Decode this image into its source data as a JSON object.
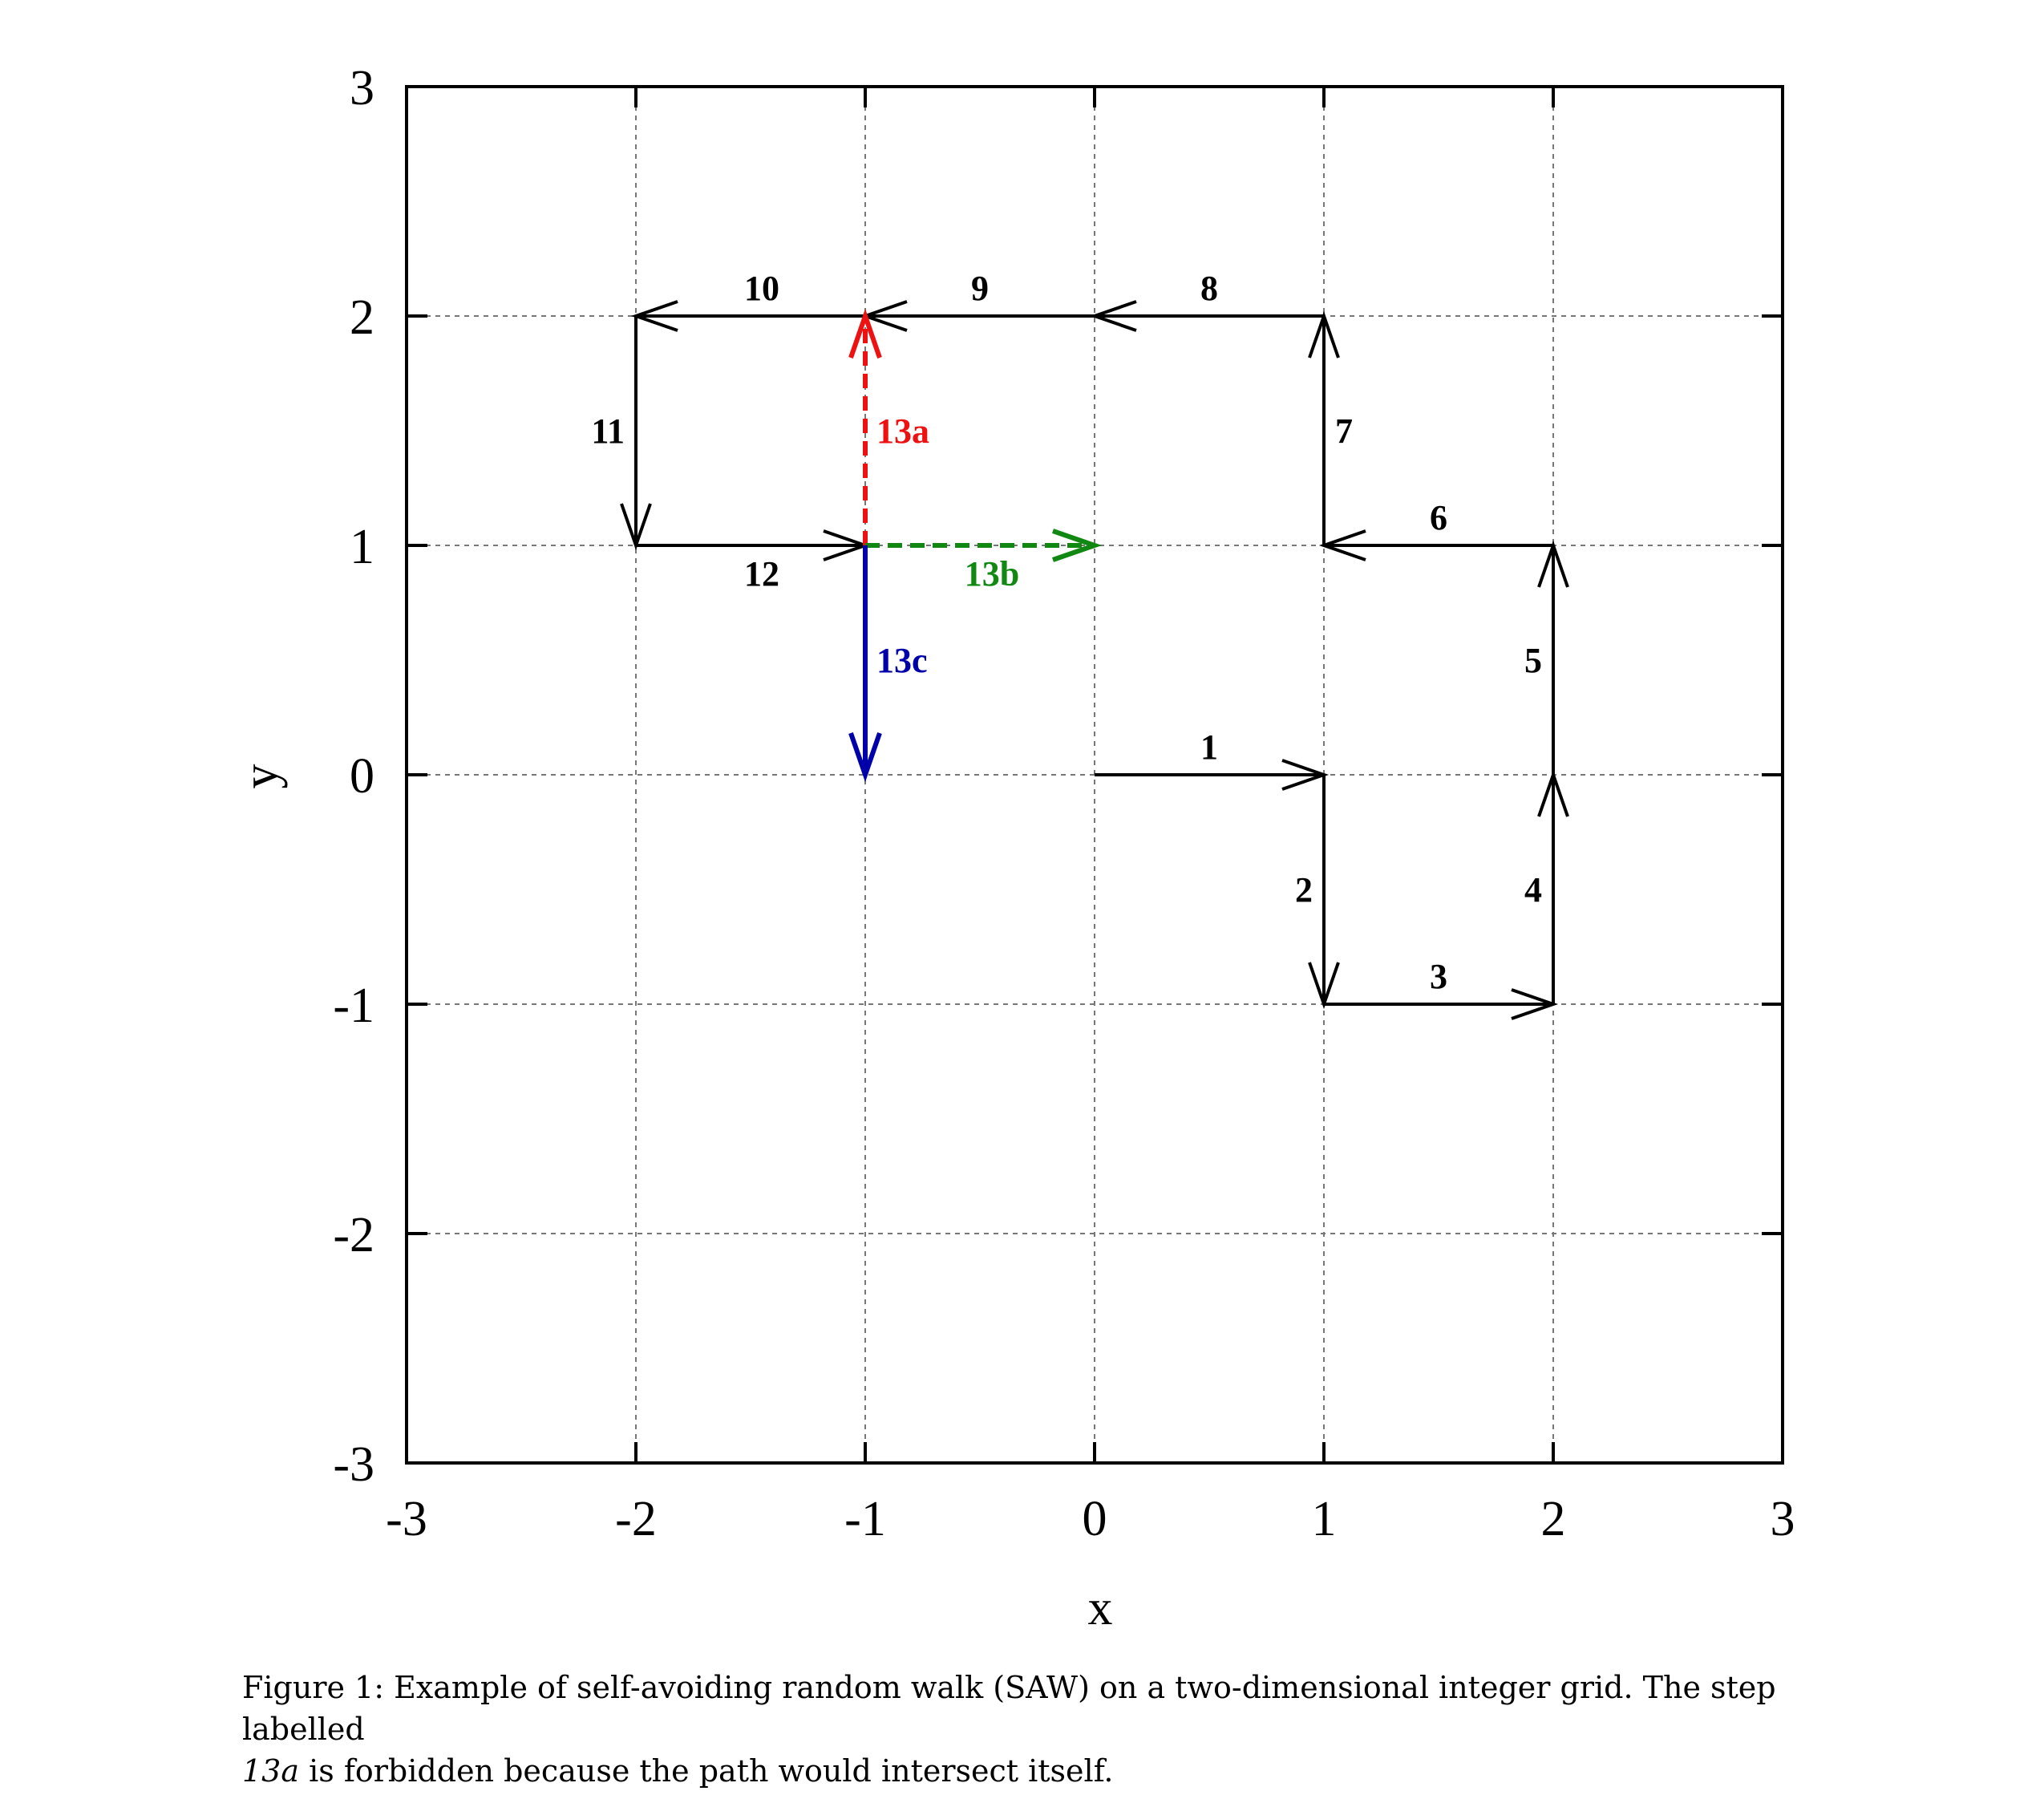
{
  "chart_data": {
    "type": "line",
    "title": "",
    "xlabel": "x",
    "ylabel": "y",
    "xlim": [
      -3,
      3
    ],
    "ylim": [
      -3,
      3
    ],
    "xticks": [
      "-3",
      "-2",
      "-1",
      "0",
      "1",
      "2",
      "3"
    ],
    "yticks": [
      "-3",
      "-2",
      "-1",
      "0",
      "1",
      "2",
      "3"
    ],
    "grid": true,
    "steps": [
      {
        "label": "1",
        "from": [
          0,
          0
        ],
        "to": [
          1,
          0
        ],
        "color": "#000000",
        "style": "solid",
        "side": "above"
      },
      {
        "label": "2",
        "from": [
          1,
          0
        ],
        "to": [
          1,
          -1
        ],
        "color": "#000000",
        "style": "solid",
        "side": "left"
      },
      {
        "label": "3",
        "from": [
          1,
          -1
        ],
        "to": [
          2,
          -1
        ],
        "color": "#000000",
        "style": "solid",
        "side": "above"
      },
      {
        "label": "4",
        "from": [
          2,
          -1
        ],
        "to": [
          2,
          0
        ],
        "color": "#000000",
        "style": "solid",
        "side": "left"
      },
      {
        "label": "5",
        "from": [
          2,
          0
        ],
        "to": [
          2,
          1
        ],
        "color": "#000000",
        "style": "solid",
        "side": "left"
      },
      {
        "label": "6",
        "from": [
          2,
          1
        ],
        "to": [
          1,
          1
        ],
        "color": "#000000",
        "style": "solid",
        "side": "above"
      },
      {
        "label": "7",
        "from": [
          1,
          1
        ],
        "to": [
          1,
          2
        ],
        "color": "#000000",
        "style": "solid",
        "side": "right"
      },
      {
        "label": "8",
        "from": [
          1,
          2
        ],
        "to": [
          0,
          2
        ],
        "color": "#000000",
        "style": "solid",
        "side": "above"
      },
      {
        "label": "9",
        "from": [
          0,
          2
        ],
        "to": [
          -1,
          2
        ],
        "color": "#000000",
        "style": "solid",
        "side": "above"
      },
      {
        "label": "10",
        "from": [
          -1,
          2
        ],
        "to": [
          -2,
          2
        ],
        "color": "#000000",
        "style": "solid",
        "side": "above"
      },
      {
        "label": "11",
        "from": [
          -2,
          2
        ],
        "to": [
          -2,
          1
        ],
        "color": "#000000",
        "style": "solid",
        "side": "left"
      },
      {
        "label": "12",
        "from": [
          -2,
          1
        ],
        "to": [
          -1,
          1
        ],
        "color": "#000000",
        "style": "solid",
        "side": "below"
      },
      {
        "label": "13a",
        "from": [
          -1,
          1
        ],
        "to": [
          -1,
          2
        ],
        "color": "#ee1111",
        "style": "dashed",
        "side": "right"
      },
      {
        "label": "13b",
        "from": [
          -1,
          1
        ],
        "to": [
          0,
          1
        ],
        "color": "#118811",
        "style": "dashed",
        "side": "below"
      },
      {
        "label": "13c",
        "from": [
          -1,
          1
        ],
        "to": [
          -1,
          0
        ],
        "color": "#0000aa",
        "style": "solid",
        "side": "right"
      }
    ]
  },
  "caption": {
    "prefix": "Figure 1: Example of self-avoiding random walk (SAW) on a two-dimensional integer grid. The step labelled",
    "step_ref": "13a",
    "suffix": " is forbidden because the path would intersect itself."
  }
}
